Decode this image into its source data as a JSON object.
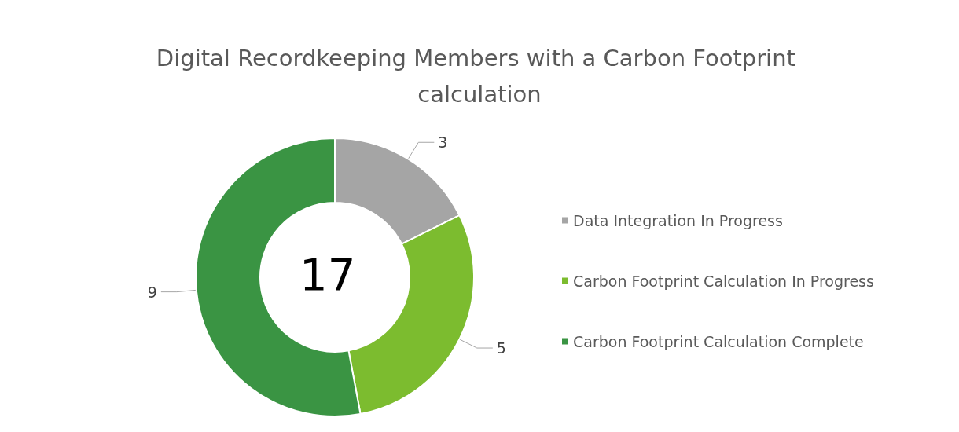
{
  "chart_data": {
    "type": "donut",
    "title": "Digital Recordkeeping Members with a Carbon Footprint calculation",
    "categories": [
      "Data Integration In Progress",
      "Carbon Footprint Calculation In Progress",
      "Carbon Footprint Calculation Complete"
    ],
    "values": [
      3,
      5,
      9
    ],
    "colors": [
      "#a5a5a5",
      "#7cbc2f",
      "#3a9443"
    ],
    "annotations": [
      "17"
    ],
    "data_labels": true,
    "legend": "right"
  }
}
